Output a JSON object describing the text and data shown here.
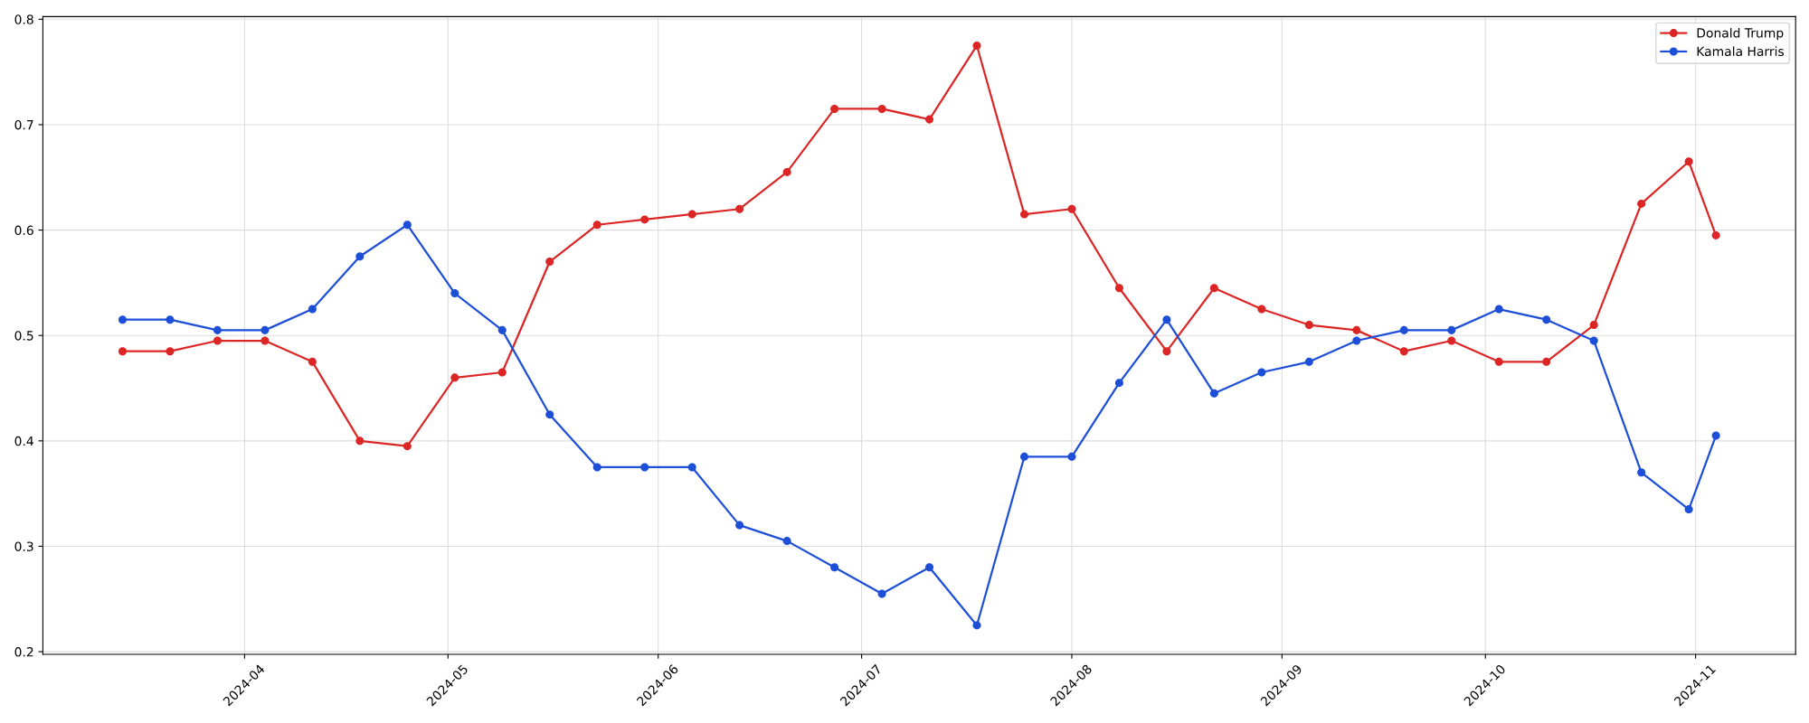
{
  "chart_data": {
    "type": "line",
    "x": [
      "2024-03-14",
      "2024-03-21",
      "2024-03-28",
      "2024-04-04",
      "2024-04-11",
      "2024-04-18",
      "2024-04-25",
      "2024-05-02",
      "2024-05-09",
      "2024-05-16",
      "2024-05-23",
      "2024-05-30",
      "2024-06-06",
      "2024-06-13",
      "2024-06-20",
      "2024-06-27",
      "2024-07-04",
      "2024-07-11",
      "2024-07-18",
      "2024-07-25",
      "2024-08-01",
      "2024-08-08",
      "2024-08-15",
      "2024-08-22",
      "2024-08-29",
      "2024-09-05",
      "2024-09-12",
      "2024-09-19",
      "2024-09-26",
      "2024-10-03",
      "2024-10-10",
      "2024-10-17",
      "2024-10-24",
      "2024-10-31",
      "2024-11-04"
    ],
    "series": [
      {
        "name": "Donald Trump",
        "color": "#dc2626",
        "values": [
          0.485,
          0.485,
          0.495,
          0.495,
          0.475,
          0.4,
          0.395,
          0.46,
          0.465,
          0.57,
          0.605,
          0.61,
          0.615,
          0.62,
          0.655,
          0.715,
          0.715,
          0.705,
          0.775,
          0.615,
          0.62,
          0.545,
          0.485,
          0.545,
          0.525,
          0.51,
          0.505,
          0.485,
          0.495,
          0.475,
          0.475,
          0.51,
          0.625,
          0.665,
          0.595
        ]
      },
      {
        "name": "Kamala Harris",
        "color": "#1d4ed8",
        "values": [
          0.515,
          0.515,
          0.505,
          0.505,
          0.525,
          0.575,
          0.605,
          0.54,
          0.505,
          0.425,
          0.375,
          0.375,
          0.375,
          0.32,
          0.305,
          0.28,
          0.255,
          0.28,
          0.225,
          0.385,
          0.385,
          0.455,
          0.515,
          0.445,
          0.465,
          0.475,
          0.495,
          0.505,
          0.505,
          0.525,
          0.515,
          0.495,
          0.37,
          0.335,
          0.405
        ]
      }
    ],
    "xlim": [
      "2024-03-02T06:00",
      "2024-11-15T18:00"
    ],
    "xticks": [
      "2024-04",
      "2024-05",
      "2024-06",
      "2024-07",
      "2024-08",
      "2024-09",
      "2024-10",
      "2024-11"
    ],
    "ylim": [
      0.1975,
      0.8025
    ],
    "yticks": [
      0.2,
      0.3,
      0.4,
      0.5,
      0.6,
      0.7,
      0.8
    ],
    "grid": true,
    "legend": "top right",
    "marker": "circle",
    "line_style": "solid"
  }
}
